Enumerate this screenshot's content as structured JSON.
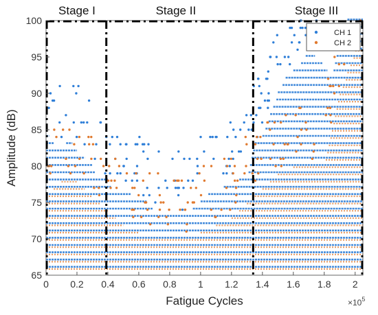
{
  "chart_data": {
    "type": "scatter",
    "title": "",
    "xlabel": "Fatigue Cycles",
    "ylabel": "Amplitude (dB)",
    "x_multiplier_label": "×10",
    "x_multiplier_exponent": "5",
    "xlim": [
      0,
      2.05
    ],
    "ylim": [
      65,
      100
    ],
    "xticks": [
      0,
      0.2,
      0.4,
      0.6,
      0.8,
      1,
      1.2,
      1.4,
      1.6,
      1.8,
      2
    ],
    "xtick_labels": [
      "0",
      "0.2",
      "0.4",
      "0.6",
      "0.8",
      "1",
      "1.2",
      "1.4",
      "1.6",
      "1.8",
      "2"
    ],
    "yticks": [
      65,
      70,
      75,
      80,
      85,
      90,
      95,
      100
    ],
    "ytick_labels": [
      "65",
      "70",
      "75",
      "80",
      "85",
      "90",
      "95",
      "100"
    ],
    "grid": false,
    "legend_position": "top-right",
    "stage_boundaries": [
      0.39,
      1.34
    ],
    "stages": [
      {
        "label": "Stage I",
        "x_center": 0.2
      },
      {
        "label": "Stage II",
        "x_center": 0.84
      },
      {
        "label": "Stage III",
        "x_center": 1.75
      }
    ],
    "series": [
      {
        "name": "CH 1",
        "color": "#2f7fd8",
        "amplitude_band_upper": [
          [
            0,
            85
          ],
          [
            0.05,
            83
          ],
          [
            0.1,
            82
          ],
          [
            0.15,
            84
          ],
          [
            0.2,
            82
          ],
          [
            0.25,
            81
          ],
          [
            0.3,
            80
          ],
          [
            0.35,
            78
          ],
          [
            0.4,
            78
          ],
          [
            0.45,
            76
          ],
          [
            0.5,
            76
          ],
          [
            0.55,
            76
          ],
          [
            0.6,
            75
          ],
          [
            0.65,
            75
          ],
          [
            0.7,
            74
          ],
          [
            0.75,
            73
          ],
          [
            0.8,
            73
          ],
          [
            0.85,
            73
          ],
          [
            0.9,
            73
          ],
          [
            0.95,
            74
          ],
          [
            1.0,
            75
          ],
          [
            1.05,
            76
          ],
          [
            1.1,
            76
          ],
          [
            1.15,
            77
          ],
          [
            1.2,
            77
          ],
          [
            1.25,
            78
          ],
          [
            1.3,
            78
          ],
          [
            1.35,
            83
          ],
          [
            1.4,
            84
          ],
          [
            1.45,
            87
          ],
          [
            1.5,
            90
          ],
          [
            1.55,
            92
          ],
          [
            1.6,
            93
          ],
          [
            1.65,
            94
          ],
          [
            1.7,
            96
          ],
          [
            1.75,
            95
          ],
          [
            1.8,
            94
          ],
          [
            1.85,
            92
          ],
          [
            1.9,
            98
          ],
          [
            1.95,
            100
          ],
          [
            2.0,
            100
          ],
          [
            2.05,
            100
          ]
        ],
        "amplitude_min": 66
      },
      {
        "name": "CH 2",
        "color": "#e07a2f",
        "amplitude_band_upper": [
          [
            0,
            76
          ],
          [
            0.1,
            78
          ],
          [
            0.2,
            78
          ],
          [
            0.3,
            76
          ],
          [
            0.4,
            74
          ],
          [
            0.5,
            72
          ],
          [
            0.6,
            71
          ],
          [
            0.7,
            70
          ],
          [
            0.8,
            70
          ],
          [
            0.9,
            70
          ],
          [
            1.0,
            71
          ],
          [
            1.1,
            72
          ],
          [
            1.2,
            73
          ],
          [
            1.3,
            75
          ],
          [
            1.35,
            76
          ],
          [
            1.4,
            77
          ],
          [
            1.5,
            79
          ],
          [
            1.6,
            80
          ],
          [
            1.7,
            80
          ],
          [
            1.8,
            80
          ],
          [
            1.9,
            90
          ],
          [
            2.0,
            96
          ],
          [
            2.05,
            96
          ]
        ],
        "amplitude_min": 66
      }
    ]
  }
}
